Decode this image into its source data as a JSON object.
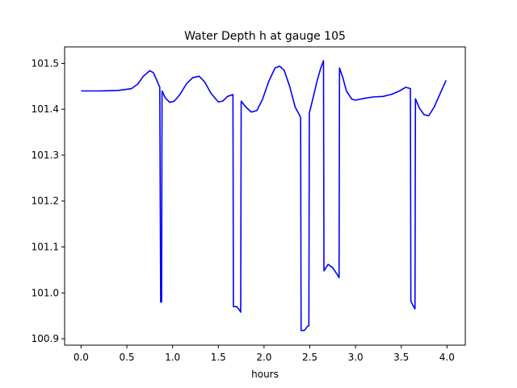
{
  "chart_data": {
    "type": "line",
    "title": "Water Depth h at gauge 105",
    "xlabel": "hours",
    "ylabel": "",
    "xlim": [
      -0.18,
      4.2
    ],
    "ylim": [
      100.886,
      101.536
    ],
    "xticks": [
      0.0,
      0.5,
      1.0,
      1.5,
      2.0,
      2.5,
      3.0,
      3.5,
      4.0
    ],
    "xtick_labels": [
      "0.0",
      "0.5",
      "1.0",
      "1.5",
      "2.0",
      "2.5",
      "3.0",
      "3.5",
      "4.0"
    ],
    "yticks": [
      100.9,
      101.0,
      101.1,
      101.2,
      101.3,
      101.4,
      101.5
    ],
    "ytick_labels": [
      "100.9",
      "101.0",
      "101.1",
      "101.2",
      "101.3",
      "101.4",
      "101.5"
    ],
    "grid": false,
    "series": [
      {
        "name": "",
        "color": "#0000ff",
        "points": [
          [
            0.0,
            101.44
          ],
          [
            0.2,
            101.44
          ],
          [
            0.4,
            101.441
          ],
          [
            0.55,
            101.445
          ],
          [
            0.62,
            101.455
          ],
          [
            0.68,
            101.472
          ],
          [
            0.75,
            101.484
          ],
          [
            0.79,
            101.48
          ],
          [
            0.83,
            101.462
          ],
          [
            0.86,
            101.448
          ],
          [
            0.87,
            100.98
          ],
          [
            0.88,
            100.98
          ],
          [
            0.885,
            101.44
          ],
          [
            0.92,
            101.425
          ],
          [
            0.97,
            101.415
          ],
          [
            1.02,
            101.418
          ],
          [
            1.08,
            101.432
          ],
          [
            1.15,
            101.455
          ],
          [
            1.22,
            101.469
          ],
          [
            1.29,
            101.472
          ],
          [
            1.35,
            101.46
          ],
          [
            1.42,
            101.435
          ],
          [
            1.5,
            101.416
          ],
          [
            1.55,
            101.418
          ],
          [
            1.6,
            101.428
          ],
          [
            1.66,
            101.432
          ],
          [
            1.665,
            100.97
          ],
          [
            1.7,
            100.97
          ],
          [
            1.73,
            100.963
          ],
          [
            1.745,
            100.958
          ],
          [
            1.75,
            101.418
          ],
          [
            1.8,
            101.405
          ],
          [
            1.86,
            101.394
          ],
          [
            1.92,
            101.397
          ],
          [
            1.98,
            101.42
          ],
          [
            2.05,
            101.46
          ],
          [
            2.12,
            101.49
          ],
          [
            2.17,
            101.494
          ],
          [
            2.22,
            101.485
          ],
          [
            2.28,
            101.45
          ],
          [
            2.34,
            101.405
          ],
          [
            2.38,
            101.39
          ],
          [
            2.4,
            101.382
          ],
          [
            2.405,
            100.918
          ],
          [
            2.44,
            100.918
          ],
          [
            2.48,
            100.928
          ],
          [
            2.49,
            100.928
          ],
          [
            2.495,
            101.392
          ],
          [
            2.53,
            101.42
          ],
          [
            2.58,
            101.462
          ],
          [
            2.62,
            101.49
          ],
          [
            2.65,
            101.506
          ],
          [
            2.655,
            101.048
          ],
          [
            2.7,
            101.062
          ],
          [
            2.75,
            101.055
          ],
          [
            2.8,
            101.04
          ],
          [
            2.82,
            101.033
          ],
          [
            2.825,
            101.49
          ],
          [
            2.86,
            101.47
          ],
          [
            2.9,
            101.44
          ],
          [
            2.96,
            101.422
          ],
          [
            3.0,
            101.42
          ],
          [
            3.1,
            101.424
          ],
          [
            3.2,
            101.427
          ],
          [
            3.3,
            101.428
          ],
          [
            3.4,
            101.433
          ],
          [
            3.48,
            101.44
          ],
          [
            3.55,
            101.448
          ],
          [
            3.6,
            101.445
          ],
          [
            3.605,
            100.982
          ],
          [
            3.63,
            100.972
          ],
          [
            3.65,
            100.965
          ],
          [
            3.655,
            101.423
          ],
          [
            3.7,
            101.402
          ],
          [
            3.75,
            101.388
          ],
          [
            3.8,
            101.386
          ],
          [
            3.86,
            101.405
          ],
          [
            3.92,
            101.432
          ],
          [
            3.99,
            101.463
          ]
        ]
      }
    ]
  }
}
